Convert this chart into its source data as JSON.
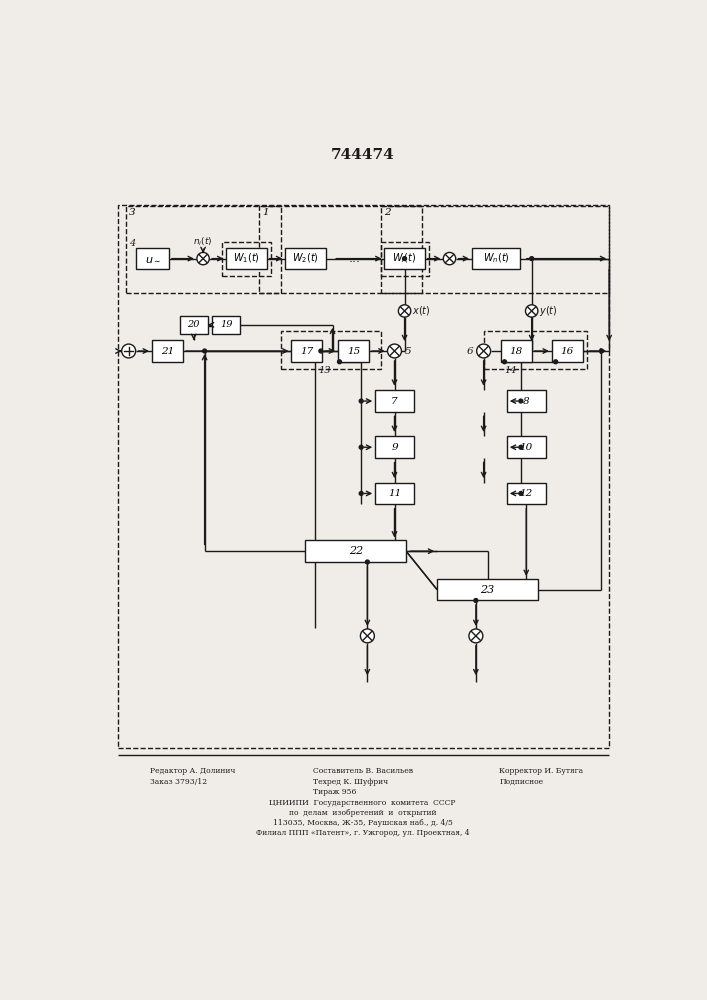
{
  "title": "744474",
  "bg_color": "#f0ede8",
  "line_color": "#1a1a1a",
  "box_color": "#ffffff",
  "footer_col1": [
    "Редактор А. Долинич",
    "Заказ 3793/12"
  ],
  "footer_col2": [
    "Составитель В. Васильев",
    "Техред К. Шуфрич",
    "Тираж 956"
  ],
  "footer_col3": [
    "Корректор И. Бутяга",
    "Подписное"
  ],
  "footer_center": [
    "ЦНИИПИ  Государственного  комитета  СССР",
    "по  делам  изобретений  и  открытий",
    "113035, Москва, Ж-35, Раушская наб., д. 4/5",
    "Филиал ППП «Патент», г. Ужгород, ул. Проектная, 4"
  ]
}
